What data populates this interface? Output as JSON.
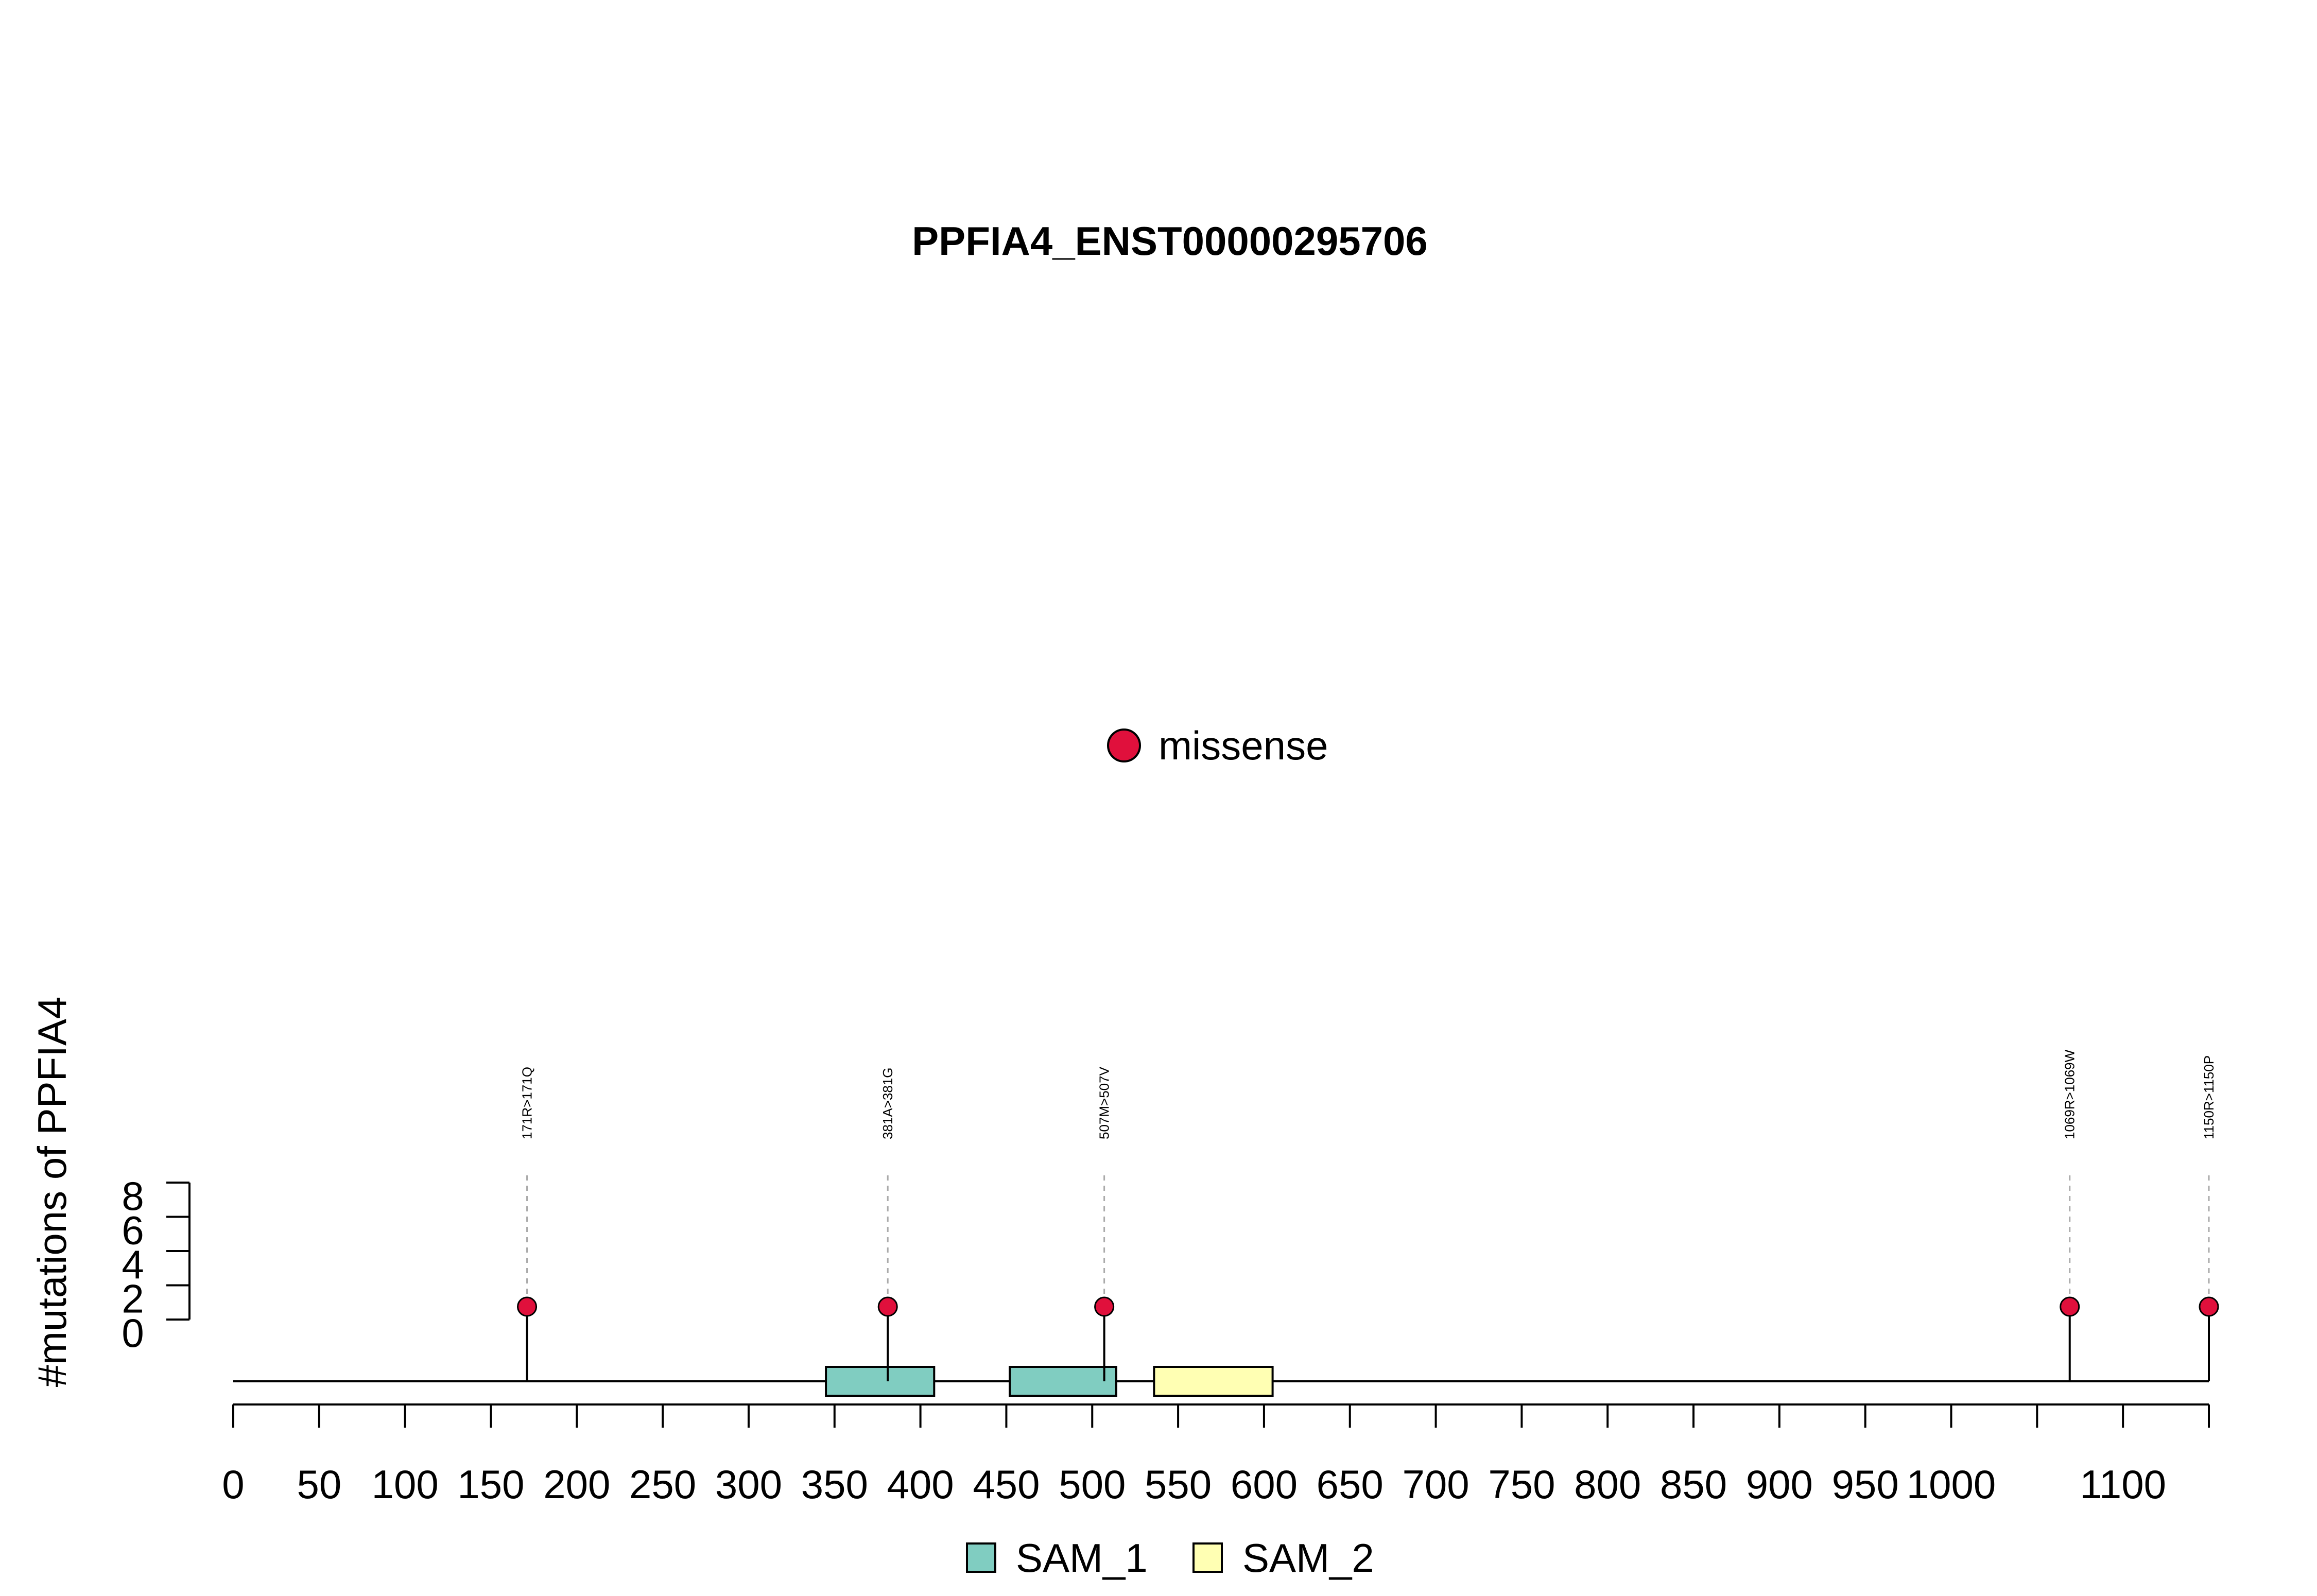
{
  "chart_data": {
    "type": "lollipop",
    "title": "PPFIA4_ENST00000295706",
    "ylabel": "#mutations of PPFIA4",
    "xlim": [
      0,
      1150
    ],
    "x_ticks": [
      0,
      50,
      100,
      150,
      200,
      250,
      300,
      350,
      400,
      450,
      500,
      550,
      600,
      650,
      700,
      750,
      800,
      850,
      900,
      950,
      1000,
      1050,
      1100,
      1150
    ],
    "x_tick_labels": [
      "0",
      "50",
      "100",
      "150",
      "200",
      "250",
      "300",
      "350",
      "400",
      "450",
      "500",
      "550",
      "600",
      "650",
      "700",
      "750",
      "800",
      "850",
      "900",
      "950",
      "1000",
      "",
      "1100",
      ""
    ],
    "y_ticks": [
      0,
      2,
      4,
      6,
      8
    ],
    "ylim": [
      0,
      8
    ],
    "mutation_legend": [
      {
        "label": "missense",
        "color": "#e0103c"
      }
    ],
    "mutations": [
      {
        "position": 171,
        "label": "171R>171Q",
        "count": 1,
        "type": "missense"
      },
      {
        "position": 381,
        "label": "381A>381G",
        "count": 1,
        "type": "missense"
      },
      {
        "position": 507,
        "label": "507M>507V",
        "count": 1,
        "type": "missense"
      },
      {
        "position": 1069,
        "label": "1069R>1069W",
        "count": 1,
        "type": "missense"
      },
      {
        "position": 1150,
        "label": "1150R>1150P",
        "count": 1,
        "type": "missense"
      }
    ],
    "domains": [
      {
        "name": "SAM_1",
        "start": 345,
        "end": 408,
        "color": "#80cdc1"
      },
      {
        "name": "SAM_1",
        "start": 452,
        "end": 514,
        "color": "#80cdc1"
      },
      {
        "name": "SAM_2",
        "start": 536,
        "end": 605,
        "color": "#ffffb3"
      }
    ],
    "domain_legend": [
      {
        "label": "SAM_1",
        "color": "#80cdc1"
      },
      {
        "label": "SAM_2",
        "color": "#ffffb3"
      }
    ]
  }
}
